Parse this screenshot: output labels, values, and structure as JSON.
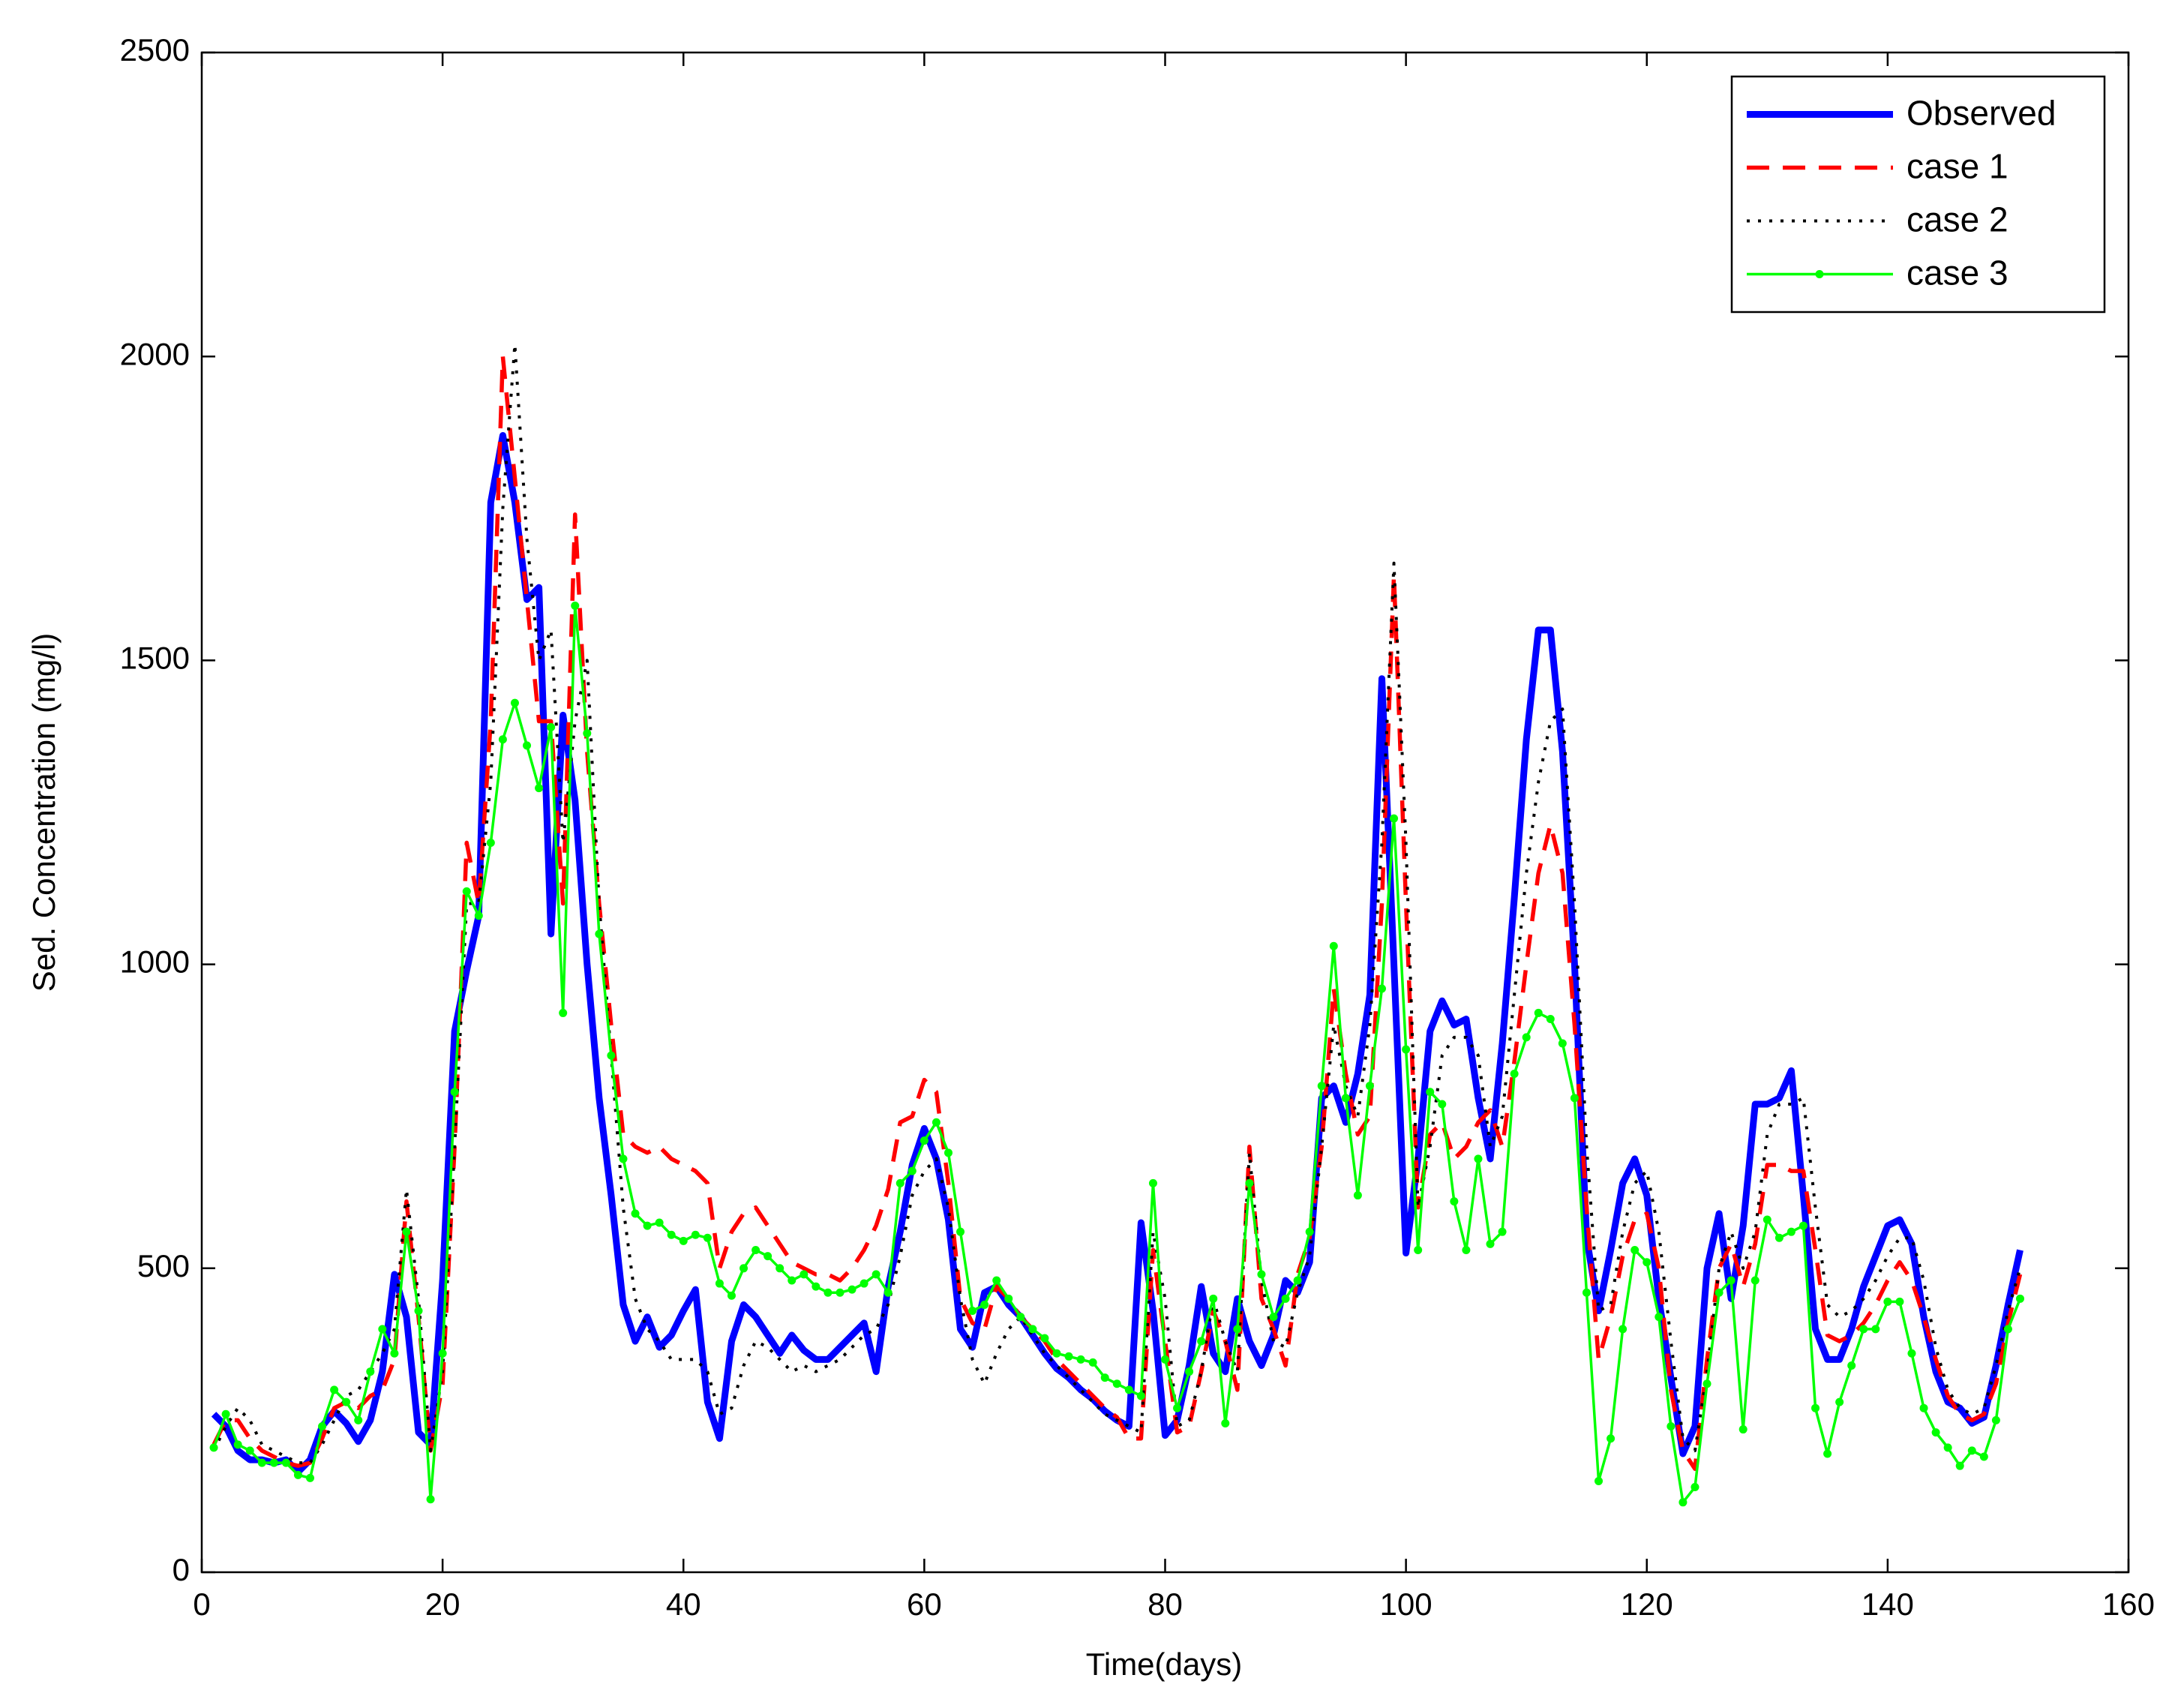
{
  "chart_data": {
    "type": "line",
    "x_label": "Time(days)",
    "y_label": "Sed. Concentration (mg/l)",
    "x": [
      1,
      2,
      3,
      4,
      5,
      6,
      7,
      8,
      9,
      10,
      11,
      12,
      13,
      14,
      15,
      16,
      17,
      18,
      19,
      20,
      21,
      22,
      23,
      24,
      25,
      26,
      27,
      28,
      29,
      30,
      31,
      32,
      33,
      34,
      35,
      36,
      37,
      38,
      39,
      40,
      41,
      42,
      43,
      44,
      45,
      46,
      47,
      48,
      49,
      50,
      51,
      52,
      53,
      54,
      55,
      56,
      57,
      58,
      59,
      60,
      61,
      62,
      63,
      64,
      65,
      66,
      67,
      68,
      69,
      70,
      71,
      72,
      73,
      74,
      75,
      76,
      77,
      78,
      79,
      80,
      81,
      82,
      83,
      84,
      85,
      86,
      87,
      88,
      89,
      90,
      91,
      92,
      93,
      94,
      95,
      96,
      97,
      98,
      99,
      100,
      101,
      102,
      103,
      104,
      105,
      106,
      107,
      108,
      109,
      110,
      111,
      112,
      113,
      114,
      115,
      116,
      117,
      118,
      119,
      120,
      121,
      122,
      123,
      124,
      125,
      126,
      127,
      128,
      129,
      130,
      131,
      132,
      133,
      134,
      135,
      136,
      137,
      138,
      139,
      140,
      141,
      142,
      143,
      144,
      145,
      146,
      147,
      148,
      149,
      150,
      151
    ],
    "series": [
      {
        "name": "Observed",
        "color": "#0000ff",
        "line_style": "solid",
        "values": [
          260,
          240,
          200,
          185,
          185,
          180,
          185,
          165,
          185,
          240,
          265,
          245,
          215,
          250,
          330,
          490,
          420,
          230,
          210,
          480,
          890,
          990,
          1080,
          1760,
          1870,
          1760,
          1600,
          1620,
          1050,
          1410,
          1270,
          1000,
          780,
          620,
          440,
          380,
          420,
          370,
          390,
          430,
          465,
          280,
          220,
          380,
          440,
          420,
          390,
          360,
          390,
          365,
          350,
          350,
          370,
          390,
          410,
          330,
          470,
          560,
          670,
          730,
          680,
          580,
          400,
          370,
          460,
          470,
          440,
          420,
          390,
          360,
          335,
          320,
          300,
          285,
          265,
          250,
          240,
          575,
          430,
          225,
          250,
          340,
          470,
          360,
          330,
          450,
          380,
          340,
          390,
          480,
          460,
          510,
          780,
          800,
          740,
          820,
          950,
          1470,
          1000,
          525,
          680,
          890,
          940,
          900,
          910,
          780,
          680,
          870,
          1110,
          1370,
          1550,
          1550,
          1350,
          1000,
          550,
          430,
          530,
          640,
          680,
          620,
          450,
          320,
          195,
          240,
          500,
          590,
          450,
          570,
          770,
          770,
          780,
          825,
          620,
          400,
          350,
          350,
          400,
          470,
          520,
          570,
          580,
          540,
          420,
          330,
          280,
          270,
          245,
          255,
          340,
          440,
          530
        ]
      },
      {
        "name": "case 1",
        "color": "#ff0000",
        "line_style": "dashed",
        "values": [
          210,
          250,
          250,
          220,
          200,
          190,
          180,
          175,
          180,
          220,
          270,
          280,
          270,
          290,
          300,
          350,
          610,
          420,
          200,
          310,
          700,
          1200,
          1100,
          1400,
          2000,
          1800,
          1600,
          1400,
          1400,
          1100,
          1740,
          1350,
          1100,
          900,
          720,
          700,
          690,
          700,
          680,
          670,
          660,
          640,
          500,
          560,
          590,
          600,
          570,
          540,
          510,
          500,
          490,
          490,
          480,
          500,
          530,
          570,
          630,
          740,
          750,
          810,
          790,
          640,
          450,
          410,
          400,
          470,
          450,
          420,
          400,
          380,
          350,
          330,
          310,
          290,
          270,
          255,
          220,
          220,
          530,
          380,
          230,
          240,
          330,
          430,
          380,
          300,
          700,
          450,
          400,
          340,
          490,
          550,
          700,
          960,
          820,
          720,
          750,
          1100,
          1640,
          1100,
          600,
          720,
          740,
          680,
          700,
          740,
          760,
          700,
          840,
          1000,
          1150,
          1230,
          1150,
          900,
          600,
          350,
          420,
          520,
          580,
          590,
          500,
          300,
          200,
          170,
          350,
          500,
          540,
          470,
          540,
          670,
          670,
          660,
          660,
          530,
          390,
          380,
          390,
          410,
          440,
          480,
          510,
          480,
          420,
          350,
          290,
          260,
          250,
          260,
          310,
          410,
          490
        ]
      },
      {
        "name": "case 2",
        "color": "#000000",
        "line_style": "dotted",
        "values": [
          200,
          240,
          270,
          250,
          210,
          200,
          190,
          180,
          180,
          210,
          250,
          290,
          300,
          330,
          360,
          400,
          630,
          450,
          200,
          330,
          700,
          1100,
          1100,
          1300,
          1750,
          2020,
          1700,
          1500,
          1550,
          1200,
          1400,
          1500,
          1100,
          850,
          600,
          450,
          400,
          380,
          350,
          350,
          350,
          330,
          260,
          270,
          340,
          380,
          370,
          350,
          330,
          340,
          330,
          340,
          350,
          370,
          390,
          400,
          440,
          520,
          620,
          660,
          680,
          600,
          450,
          350,
          310,
          360,
          400,
          420,
          390,
          360,
          340,
          320,
          300,
          280,
          260,
          250,
          240,
          230,
          560,
          450,
          240,
          250,
          330,
          450,
          380,
          330,
          690,
          480,
          380,
          370,
          460,
          520,
          700,
          900,
          800,
          750,
          900,
          1200,
          1660,
          1200,
          600,
          700,
          850,
          880,
          880,
          850,
          700,
          750,
          950,
          1150,
          1300,
          1400,
          1420,
          1100,
          700,
          430,
          440,
          560,
          640,
          660,
          560,
          380,
          220,
          200,
          330,
          500,
          560,
          500,
          560,
          720,
          770,
          770,
          780,
          600,
          440,
          420,
          430,
          450,
          480,
          520,
          550,
          550,
          480,
          370,
          300,
          270,
          260,
          270,
          340,
          430,
          500
        ]
      },
      {
        "name": "case 3",
        "color": "#00ff00",
        "line_style": "solid",
        "marker": "dot",
        "values": [
          205,
          260,
          210,
          200,
          180,
          180,
          180,
          160,
          155,
          240,
          300,
          280,
          250,
          330,
          400,
          360,
          560,
          430,
          120,
          360,
          790,
          1120,
          1080,
          1200,
          1370,
          1430,
          1360,
          1290,
          1390,
          920,
          1590,
          1380,
          1050,
          850,
          680,
          590,
          570,
          575,
          555,
          545,
          555,
          550,
          475,
          455,
          500,
          530,
          520,
          500,
          480,
          490,
          470,
          460,
          460,
          465,
          475,
          490,
          460,
          640,
          660,
          710,
          740,
          690,
          560,
          430,
          440,
          480,
          450,
          420,
          400,
          385,
          360,
          355,
          350,
          345,
          320,
          310,
          300,
          290,
          640,
          350,
          270,
          330,
          380,
          450,
          245,
          400,
          640,
          490,
          420,
          450,
          480,
          560,
          800,
          1030,
          780,
          620,
          800,
          960,
          1240,
          860,
          530,
          790,
          770,
          610,
          530,
          680,
          540,
          560,
          820,
          880,
          920,
          910,
          870,
          780,
          460,
          150,
          220,
          400,
          530,
          510,
          420,
          240,
          115,
          140,
          310,
          460,
          480,
          235,
          480,
          580,
          550,
          560,
          570,
          270,
          195,
          280,
          340,
          400,
          400,
          445,
          445,
          360,
          270,
          230,
          205,
          175,
          200,
          190,
          250,
          400,
          450
        ]
      }
    ],
    "xlim": [
      0,
      160
    ],
    "xticks": [
      0,
      20,
      40,
      60,
      80,
      100,
      120,
      140,
      160
    ],
    "ylim": [
      0,
      2500
    ],
    "yticks": [
      0,
      500,
      1000,
      1500,
      2000,
      2500
    ],
    "grid": false,
    "legend": "upper right"
  }
}
